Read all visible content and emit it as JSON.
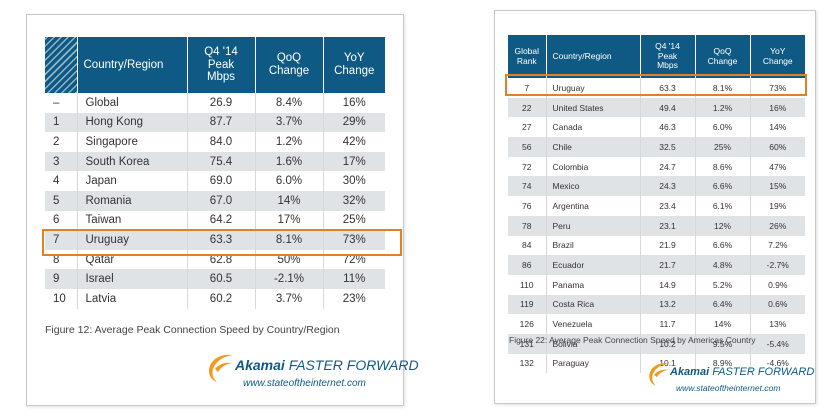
{
  "left": {
    "headers": [
      "",
      "Country/Region",
      "Q4 '14\nPeak\nMbps",
      "QoQ\nChange",
      "YoY\nChange"
    ],
    "rows": [
      [
        "–",
        "Global",
        "26.9",
        "8.4%",
        "16%"
      ],
      [
        "1",
        "Hong Kong",
        "87.7",
        "3.7%",
        "29%"
      ],
      [
        "2",
        "Singapore",
        "84.0",
        "1.2%",
        "42%"
      ],
      [
        "3",
        "South Korea",
        "75.4",
        "1.6%",
        "17%"
      ],
      [
        "4",
        "Japan",
        "69.0",
        "6.0%",
        "30%"
      ],
      [
        "5",
        "Romania",
        "67.0",
        "14%",
        "32%"
      ],
      [
        "6",
        "Taiwan",
        "64.2",
        "17%",
        "25%"
      ],
      [
        "7",
        "Uruguay",
        "63.3",
        "8.1%",
        "73%"
      ],
      [
        "8",
        "Qatar",
        "62.8",
        "50%",
        "72%"
      ],
      [
        "9",
        "Israel",
        "60.5",
        "-2.1%",
        "11%"
      ],
      [
        "10",
        "Latvia",
        "60.2",
        "3.7%",
        "23%"
      ]
    ],
    "caption": "Figure 12: Average Peak Connection Speed by Country/Region"
  },
  "right": {
    "headers": [
      "Global\nRank",
      "Country/Region",
      "Q4 '14\nPeak\nMbps",
      "QoQ\nChange",
      "YoY\nChange"
    ],
    "rows": [
      [
        "7",
        "Uruguay",
        "63.3",
        "8.1%",
        "73%"
      ],
      [
        "22",
        "United States",
        "49.4",
        "1.2%",
        "16%"
      ],
      [
        "27",
        "Canada",
        "46.3",
        "6.0%",
        "14%"
      ],
      [
        "56",
        "Chile",
        "32.5",
        "25%",
        "60%"
      ],
      [
        "72",
        "Colombia",
        "24.7",
        "8.6%",
        "47%"
      ],
      [
        "74",
        "Mexico",
        "24.3",
        "6.6%",
        "15%"
      ],
      [
        "76",
        "Argentina",
        "23.4",
        "6.1%",
        "19%"
      ],
      [
        "78",
        "Peru",
        "23.1",
        "12%",
        "26%"
      ],
      [
        "84",
        "Brazil",
        "21.9",
        "6.6%",
        "7.2%"
      ],
      [
        "86",
        "Ecuador",
        "21.7",
        "4.8%",
        "-2.7%"
      ],
      [
        "110",
        "Panama",
        "14.9",
        "5.2%",
        "0.9%"
      ],
      [
        "119",
        "Costa Rica",
        "13.2",
        "6.4%",
        "0.6%"
      ],
      [
        "126",
        "Venezuela",
        "11.7",
        "14%",
        "13%"
      ],
      [
        "131",
        "Bolivia",
        "10.2",
        "9.5%",
        "-5.4%"
      ],
      [
        "132",
        "Paraguay",
        "10.1",
        "8.9%",
        "-4.6%"
      ]
    ],
    "caption": "Figure 22: Average Peak Connection Speed by Americas Country"
  },
  "brand": {
    "name": "Akamai",
    "tagline": "FASTER FORWARD",
    "url": "www.stateoftheinternet.com"
  },
  "colors": {
    "header": "#0f5a84",
    "row_alt": "#dfe3e6",
    "highlight": "#e67e22",
    "logo_orange": "#f39a1e"
  }
}
